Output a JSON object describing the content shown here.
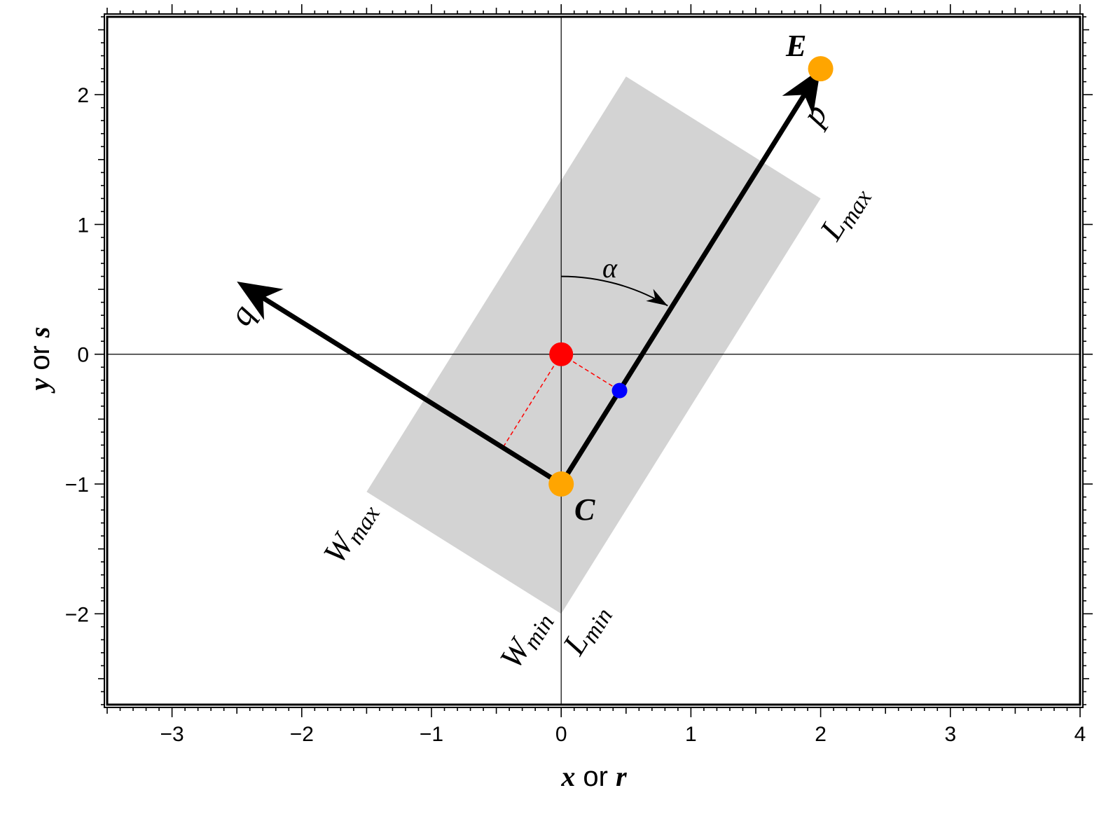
{
  "chart_data": {
    "type": "diagram",
    "x_axis": {
      "range": [
        -3.5,
        4
      ],
      "major_ticks": [
        -3,
        -2,
        -1,
        0,
        1,
        2,
        3,
        4
      ],
      "tick_labels": [
        "−3",
        "−2",
        "−1",
        "0",
        "1",
        "2",
        "3",
        "4"
      ],
      "minor_step": 0.1,
      "mid_step": 0.5,
      "title_var": "x",
      "title_mid": " or ",
      "title_var2": "r"
    },
    "y_axis": {
      "range": [
        -2.7,
        2.6
      ],
      "major_ticks": [
        -2,
        -1,
        0,
        1,
        2
      ],
      "tick_labels": [
        "−2",
        "−1",
        "0",
        "1",
        "2"
      ],
      "minor_step": 0.1,
      "mid_step": 0.5,
      "title_var": "y",
      "title_mid": " or ",
      "title_var2": "s"
    },
    "shaded_rectangle": {
      "corners": [
        [
          0.0,
          -2.0
        ],
        [
          2.0,
          1.2
        ],
        [
          0.5,
          2.14
        ],
        [
          -1.5,
          -1.06
        ]
      ],
      "color": "#d3d3d3"
    },
    "points": {
      "C": {
        "x": 0.0,
        "y": -1.0,
        "color": "#ffa500",
        "label": "C"
      },
      "E": {
        "x": 2.0,
        "y": 2.2,
        "color": "#ffa500",
        "label": "E"
      },
      "origin": {
        "x": 0.0,
        "y": 0.0,
        "color": "#ff0000"
      },
      "projection": {
        "x": 0.45,
        "y": -0.28,
        "color": "#0000ff"
      }
    },
    "vectors": {
      "p": {
        "from": [
          0.0,
          -1.0
        ],
        "to": [
          2.0,
          2.2
        ],
        "label": "p"
      },
      "q": {
        "from": [
          0.0,
          -1.0
        ],
        "to": [
          -2.5,
          0.56
        ],
        "label": "q"
      }
    },
    "dashed_lines": [
      {
        "from": [
          0.0,
          0.0
        ],
        "to": [
          0.45,
          -0.28
        ]
      },
      {
        "from": [
          0.0,
          0.0
        ],
        "to": [
          -0.45,
          -0.72
        ]
      }
    ],
    "angle_label": "α",
    "edge_labels": {
      "l_max": {
        "main": "L",
        "sub": "max"
      },
      "l_min": {
        "main": "L",
        "sub": "min"
      },
      "w_max": {
        "main": "W",
        "sub": "max"
      },
      "w_min": {
        "main": "W",
        "sub": "min"
      }
    }
  }
}
